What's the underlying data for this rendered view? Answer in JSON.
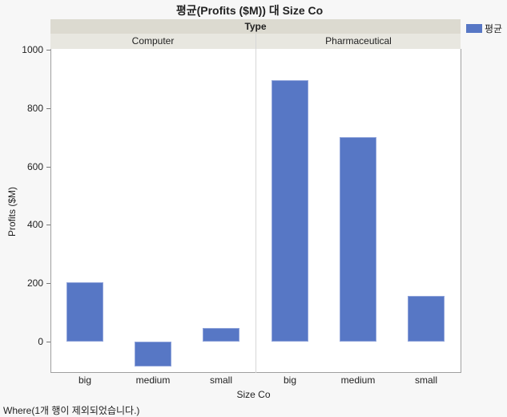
{
  "chart_data": {
    "type": "bar",
    "title": "평균(Profits ($M)) 대 Size Co",
    "xlabel": "Size Co",
    "ylabel": "Profits ($M)",
    "ylim": [
      -100,
      1000
    ],
    "yticks": [
      0,
      200,
      400,
      600,
      800,
      1000
    ],
    "group_header": "Type",
    "groups": [
      "Computer",
      "Pharmaceutical"
    ],
    "categories": [
      "big",
      "medium",
      "small"
    ],
    "series": [
      {
        "name": "평균",
        "group": "Computer",
        "values": [
          202,
          -85,
          46
        ]
      },
      {
        "name": "평균",
        "group": "Pharmaceutical",
        "values": [
          895,
          700,
          157
        ]
      }
    ],
    "legend": [
      "평균"
    ],
    "legend_position": "top-right",
    "grid": false,
    "color": "#5777c5"
  },
  "footer": "Where(1개 행이 제외되었습니다.)"
}
